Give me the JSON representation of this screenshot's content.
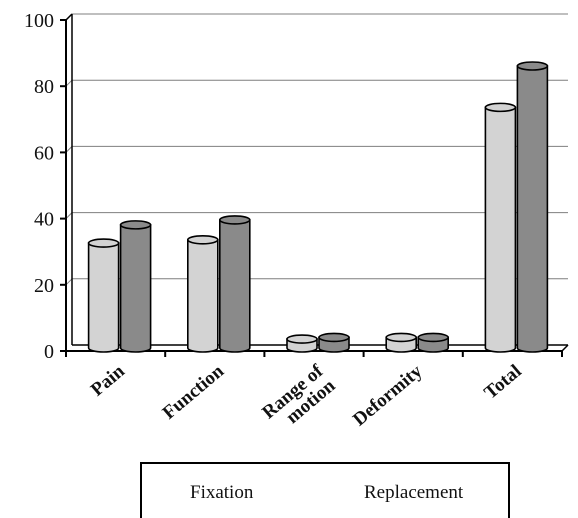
{
  "chart_data": {
    "type": "bar",
    "categories": [
      "Pain",
      "Function",
      "Range of motion",
      "Deformity",
      "Total"
    ],
    "category_lines": [
      [
        "Pain"
      ],
      [
        "Function"
      ],
      [
        "Range of",
        "motion"
      ],
      [
        "Deformity"
      ],
      [
        "Total"
      ]
    ],
    "series": [
      {
        "name": "Fixation",
        "values": [
          32,
          33,
          3,
          3.5,
          73
        ],
        "color": "#d3d3d3"
      },
      {
        "name": "Replacement",
        "values": [
          37.5,
          39,
          3.5,
          3.5,
          85.5
        ],
        "color": "#8a8a8a"
      }
    ],
    "ylim": [
      0,
      100
    ],
    "yticks": [
      0,
      20,
      40,
      60,
      80,
      100
    ],
    "grid": true,
    "legend_position": "bottom",
    "bar_style": "3d-cylinder"
  }
}
